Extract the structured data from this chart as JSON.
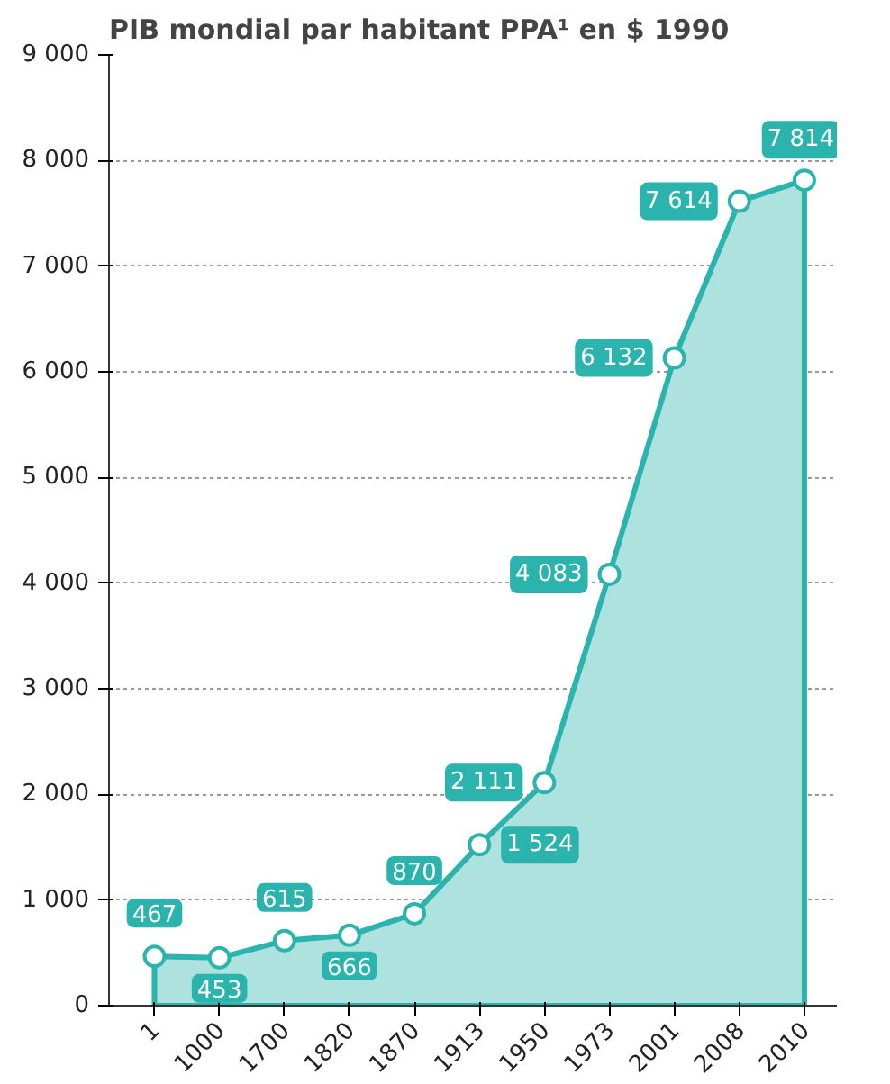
{
  "chart_data": {
    "type": "area",
    "title": "PIB mondial par habitant PPA¹ en $ 1990",
    "categories": [
      "1",
      "1000",
      "1700",
      "1820",
      "1870",
      "1913",
      "1950",
      "1973",
      "2001",
      "2008",
      "2010"
    ],
    "series": [
      {
        "color": "#2bb3ad",
        "values": [
          467,
          453,
          615,
          666,
          870,
          1524,
          2111,
          4083,
          6132,
          7614,
          7814
        ]
      }
    ],
    "value_labels": [
      "467",
      "453",
      "615",
      "666",
      "870",
      "1 524",
      "2 111",
      "4 083",
      "6 132",
      "7 614",
      "7 814"
    ],
    "ylim": [
      0,
      9000
    ],
    "yticks": [
      {
        "value": 0,
        "label": "0"
      },
      {
        "value": 1000,
        "label": "1 000"
      },
      {
        "value": 2000,
        "label": "2 000"
      },
      {
        "value": 3000,
        "label": "3 000"
      },
      {
        "value": 4000,
        "label": "4 000"
      },
      {
        "value": 5000,
        "label": "5 000"
      },
      {
        "value": 6000,
        "label": "6 000"
      },
      {
        "value": 7000,
        "label": "7 000"
      },
      {
        "value": 8000,
        "label": "8 000"
      },
      {
        "value": 9000,
        "label": "9 000"
      }
    ],
    "grid": "y",
    "marker": "circle",
    "line_style": "solid"
  }
}
